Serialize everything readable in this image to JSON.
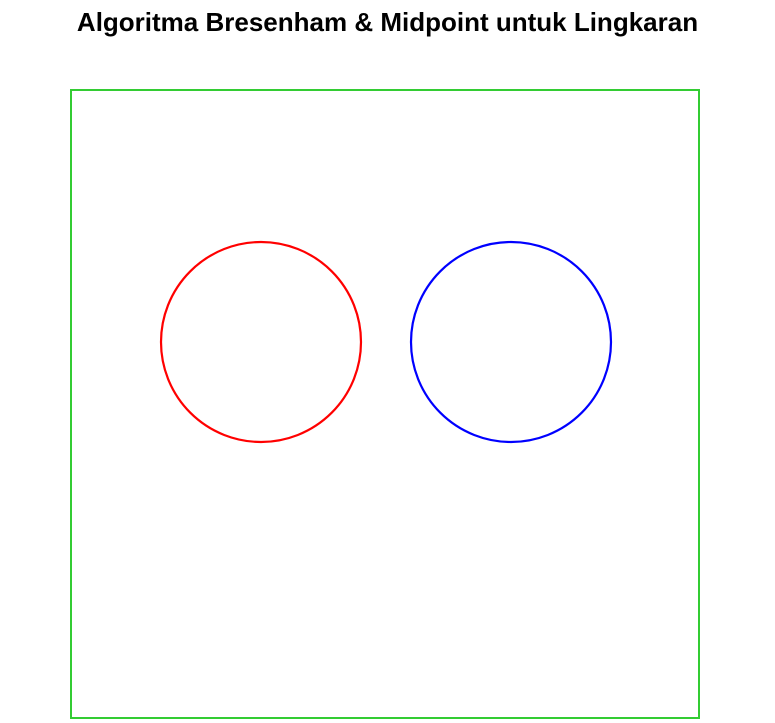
{
  "header": {
    "title": "Algoritma Bresenham & Midpoint untuk Lingkaran"
  },
  "canvas": {
    "border_color": "#33cc33",
    "background_color": "#ffffff"
  },
  "circles": [
    {
      "algorithm": "bresenham",
      "color": "#ff0000"
    },
    {
      "algorithm": "midpoint",
      "color": "#0000ff"
    }
  ]
}
